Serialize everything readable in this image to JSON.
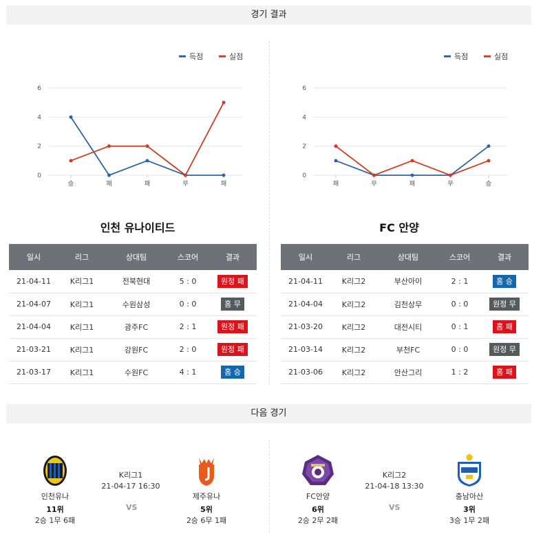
{
  "sections": {
    "results_title": "경기 결과",
    "next_title": "다음 경기"
  },
  "legend": {
    "scored": "득점",
    "conceded": "실점"
  },
  "colors": {
    "scored": "#2b63a8",
    "conceded": "#d23a1f"
  },
  "chart_data": [
    {
      "type": "line",
      "categories": [
        "승",
        "패",
        "패",
        "무",
        "패"
      ],
      "ylim": [
        0,
        6
      ],
      "yticks": [
        0,
        2,
        4,
        6
      ],
      "series": [
        {
          "name": "득점",
          "values": [
            4,
            0,
            1,
            0,
            0
          ]
        },
        {
          "name": "실점",
          "values": [
            1,
            2,
            2,
            0,
            5
          ]
        }
      ],
      "legend": "top-right",
      "grid": true
    },
    {
      "type": "line",
      "categories": [
        "패",
        "무",
        "패",
        "무",
        "승"
      ],
      "ylim": [
        0,
        6
      ],
      "yticks": [
        0,
        2,
        4,
        6
      ],
      "series": [
        {
          "name": "득점",
          "values": [
            1,
            0,
            0,
            0,
            2
          ]
        },
        {
          "name": "실점",
          "values": [
            2,
            0,
            1,
            0,
            1
          ]
        }
      ],
      "legend": "top-right",
      "grid": true
    }
  ],
  "table_headers": [
    "일시",
    "리그",
    "상대팀",
    "스코어",
    "결과"
  ],
  "teams": [
    {
      "name": "인천 유나이티드",
      "rows": [
        {
          "date": "21-04-11",
          "league": "K리그1",
          "opponent": "전북현대",
          "score": "5 : 0",
          "result": "원정 패",
          "color": "red"
        },
        {
          "date": "21-04-07",
          "league": "K리그1",
          "opponent": "수원삼성",
          "score": "0 : 0",
          "result": "홈 무",
          "color": "gray"
        },
        {
          "date": "21-04-04",
          "league": "K리그1",
          "opponent": "광주FC",
          "score": "2 : 1",
          "result": "원정 패",
          "color": "red"
        },
        {
          "date": "21-03-21",
          "league": "K리그1",
          "opponent": "강원FC",
          "score": "2 : 0",
          "result": "원정 패",
          "color": "red"
        },
        {
          "date": "21-03-17",
          "league": "K리그1",
          "opponent": "수원FC",
          "score": "4 : 1",
          "result": "홈 승",
          "color": "blue"
        }
      ]
    },
    {
      "name": "FC 안양",
      "rows": [
        {
          "date": "21-04-11",
          "league": "K리그2",
          "opponent": "부산아이",
          "score": "2 : 1",
          "result": "홈 승",
          "color": "blue"
        },
        {
          "date": "21-04-04",
          "league": "K리그2",
          "opponent": "김천상무",
          "score": "0 : 0",
          "result": "원정 무",
          "color": "gray"
        },
        {
          "date": "21-03-20",
          "league": "K리그2",
          "opponent": "대전시티",
          "score": "0 : 1",
          "result": "홈 패",
          "color": "red"
        },
        {
          "date": "21-03-14",
          "league": "K리그2",
          "opponent": "부천FC",
          "score": "0 : 0",
          "result": "원정 무",
          "color": "gray"
        },
        {
          "date": "21-03-06",
          "league": "K리그2",
          "opponent": "안산그리",
          "score": "1 : 2",
          "result": "홈 패",
          "color": "red"
        }
      ]
    }
  ],
  "next_matches": [
    {
      "league": "K리그1",
      "datetime": "21-04-17 16:30",
      "vs": "VS",
      "home": {
        "name": "인천유나",
        "rank": "11위",
        "record": "2승 1무 6패",
        "logo": "incheon-united-logo",
        "color": "#1a1a1a"
      },
      "away": {
        "name": "제주유나",
        "rank": "5위",
        "record": "2승 6무 1패",
        "logo": "jeju-united-logo",
        "color": "#e95b1d"
      }
    },
    {
      "league": "K리그2",
      "datetime": "21-04-18 13:30",
      "vs": "VS",
      "home": {
        "name": "FC안양",
        "rank": "6위",
        "record": "2승 2무 2패",
        "logo": "fc-anyang-logo",
        "color": "#5b2c82"
      },
      "away": {
        "name": "충남아산",
        "rank": "3위",
        "record": "3승 1무 2패",
        "logo": "chungnam-asan-logo",
        "color": "#1c5fb3"
      }
    }
  ]
}
